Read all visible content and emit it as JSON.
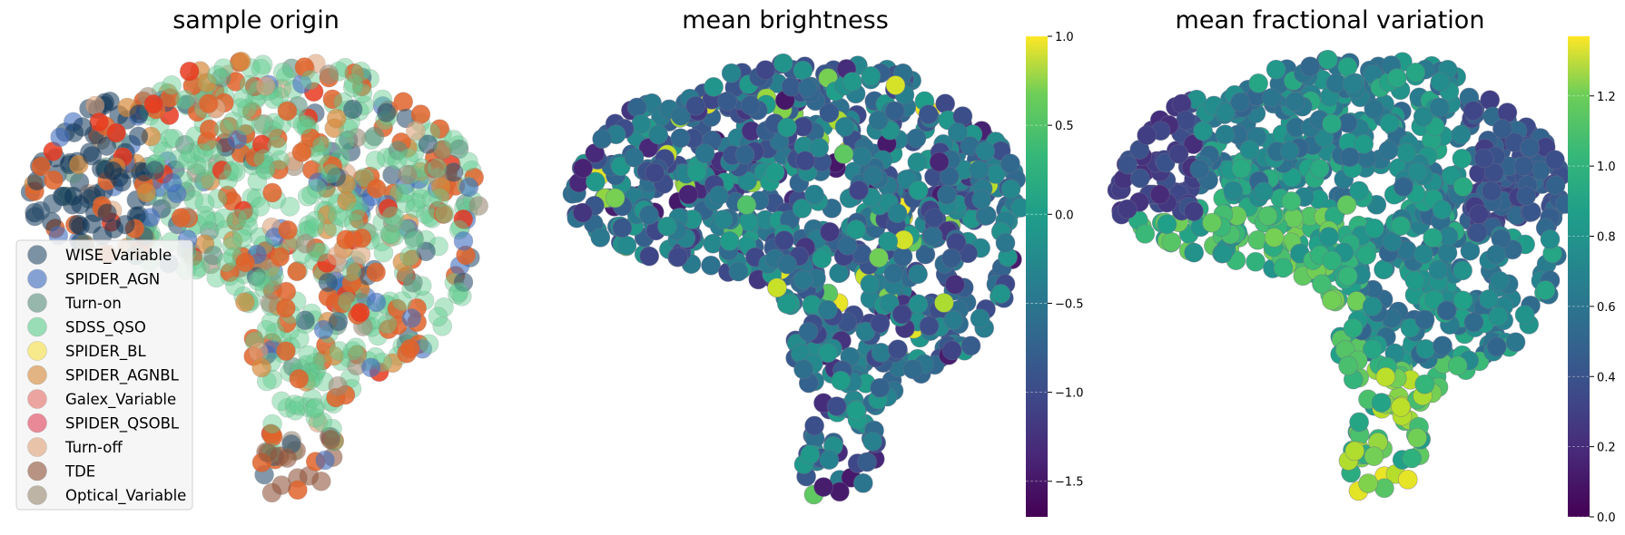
{
  "chart_data": [
    {
      "type": "scatter",
      "title": "sample origin",
      "axes": "off",
      "legend": {
        "placement": "lower-left",
        "entries": [
          {
            "name": "WISE_Variable",
            "color": "#2e5371"
          },
          {
            "name": "SPIDER_AGN",
            "color": "#3f6cbf"
          },
          {
            "name": "Turn-on",
            "color": "#5c8f7e"
          },
          {
            "name": "SDSS_QSO",
            "color": "#5fcd8f"
          },
          {
            "name": "SPIDER_BL",
            "color": "#f7e24b"
          },
          {
            "name": "SPIDER_AGNBL",
            "color": "#d58a3c"
          },
          {
            "name": "Galex_Variable",
            "color": "#e4716a"
          },
          {
            "name": "SPIDER_QSOBL",
            "color": "#e0465e"
          },
          {
            "name": "Turn-off",
            "color": "#dea37b"
          },
          {
            "name": "TDE",
            "color": "#91563e"
          },
          {
            "name": "Optical_Variable",
            "color": "#9a8a74"
          }
        ]
      },
      "highlight_colors": {
        "orange": "#e1632a",
        "red": "#e8391f",
        "navy": "#0f3557"
      }
    },
    {
      "type": "scatter",
      "title": "mean brightness",
      "axes": "off",
      "colormap": "viridis",
      "colorbar": {
        "range": [
          -1.7,
          1.0
        ],
        "ticks": [
          1.0,
          0.5,
          0.0,
          -0.5,
          -1.0,
          -1.5
        ],
        "tick_labels": [
          "1.0",
          "0.5",
          "0.0",
          "−0.5",
          "−1.0",
          "−1.5"
        ]
      }
    },
    {
      "type": "scatter",
      "title": "mean fractional variation",
      "axes": "off",
      "colormap": "viridis",
      "colorbar": {
        "range": [
          0.0,
          1.37
        ],
        "ticks": [
          1.2,
          1.0,
          0.8,
          0.6,
          0.4,
          0.2,
          0.0
        ],
        "tick_labels": [
          "1.2",
          "1.0",
          "0.8",
          "0.6",
          "0.4",
          "0.2",
          "0.0"
        ]
      }
    }
  ]
}
